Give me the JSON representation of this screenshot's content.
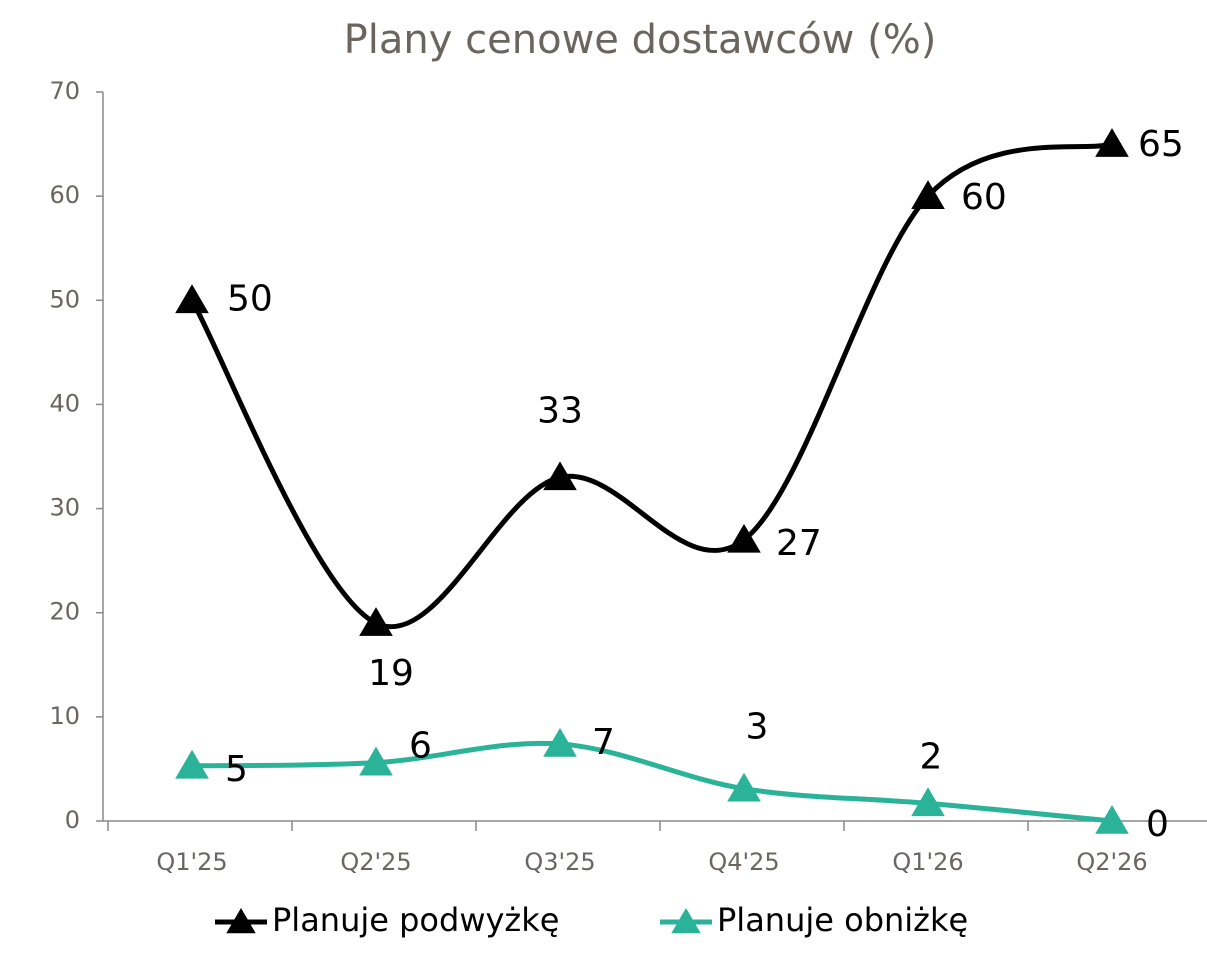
{
  "chart_data": {
    "type": "line",
    "title": "Plany cenowe dostawców (%)",
    "categories": [
      "Q1'25",
      "Q2'25",
      "Q3'25",
      "Q4'25",
      "Q1'26",
      "Q2'26"
    ],
    "series": [
      {
        "name": "Planuje podwyżkę",
        "color": "#000000",
        "values": [
          50,
          19,
          33,
          27,
          60,
          65
        ]
      },
      {
        "name": "Planuje obniżkę",
        "color": "#2bb39a",
        "values": [
          5.3,
          5.6,
          7.4,
          3.1,
          1.7,
          0
        ],
        "value_labels": [
          "5",
          "6",
          "7",
          "3",
          "2",
          "0"
        ]
      }
    ],
    "ylim": [
      0,
      70
    ],
    "yticks": [
      0,
      10,
      20,
      30,
      40,
      50,
      60,
      70
    ],
    "legend": "bottom"
  }
}
